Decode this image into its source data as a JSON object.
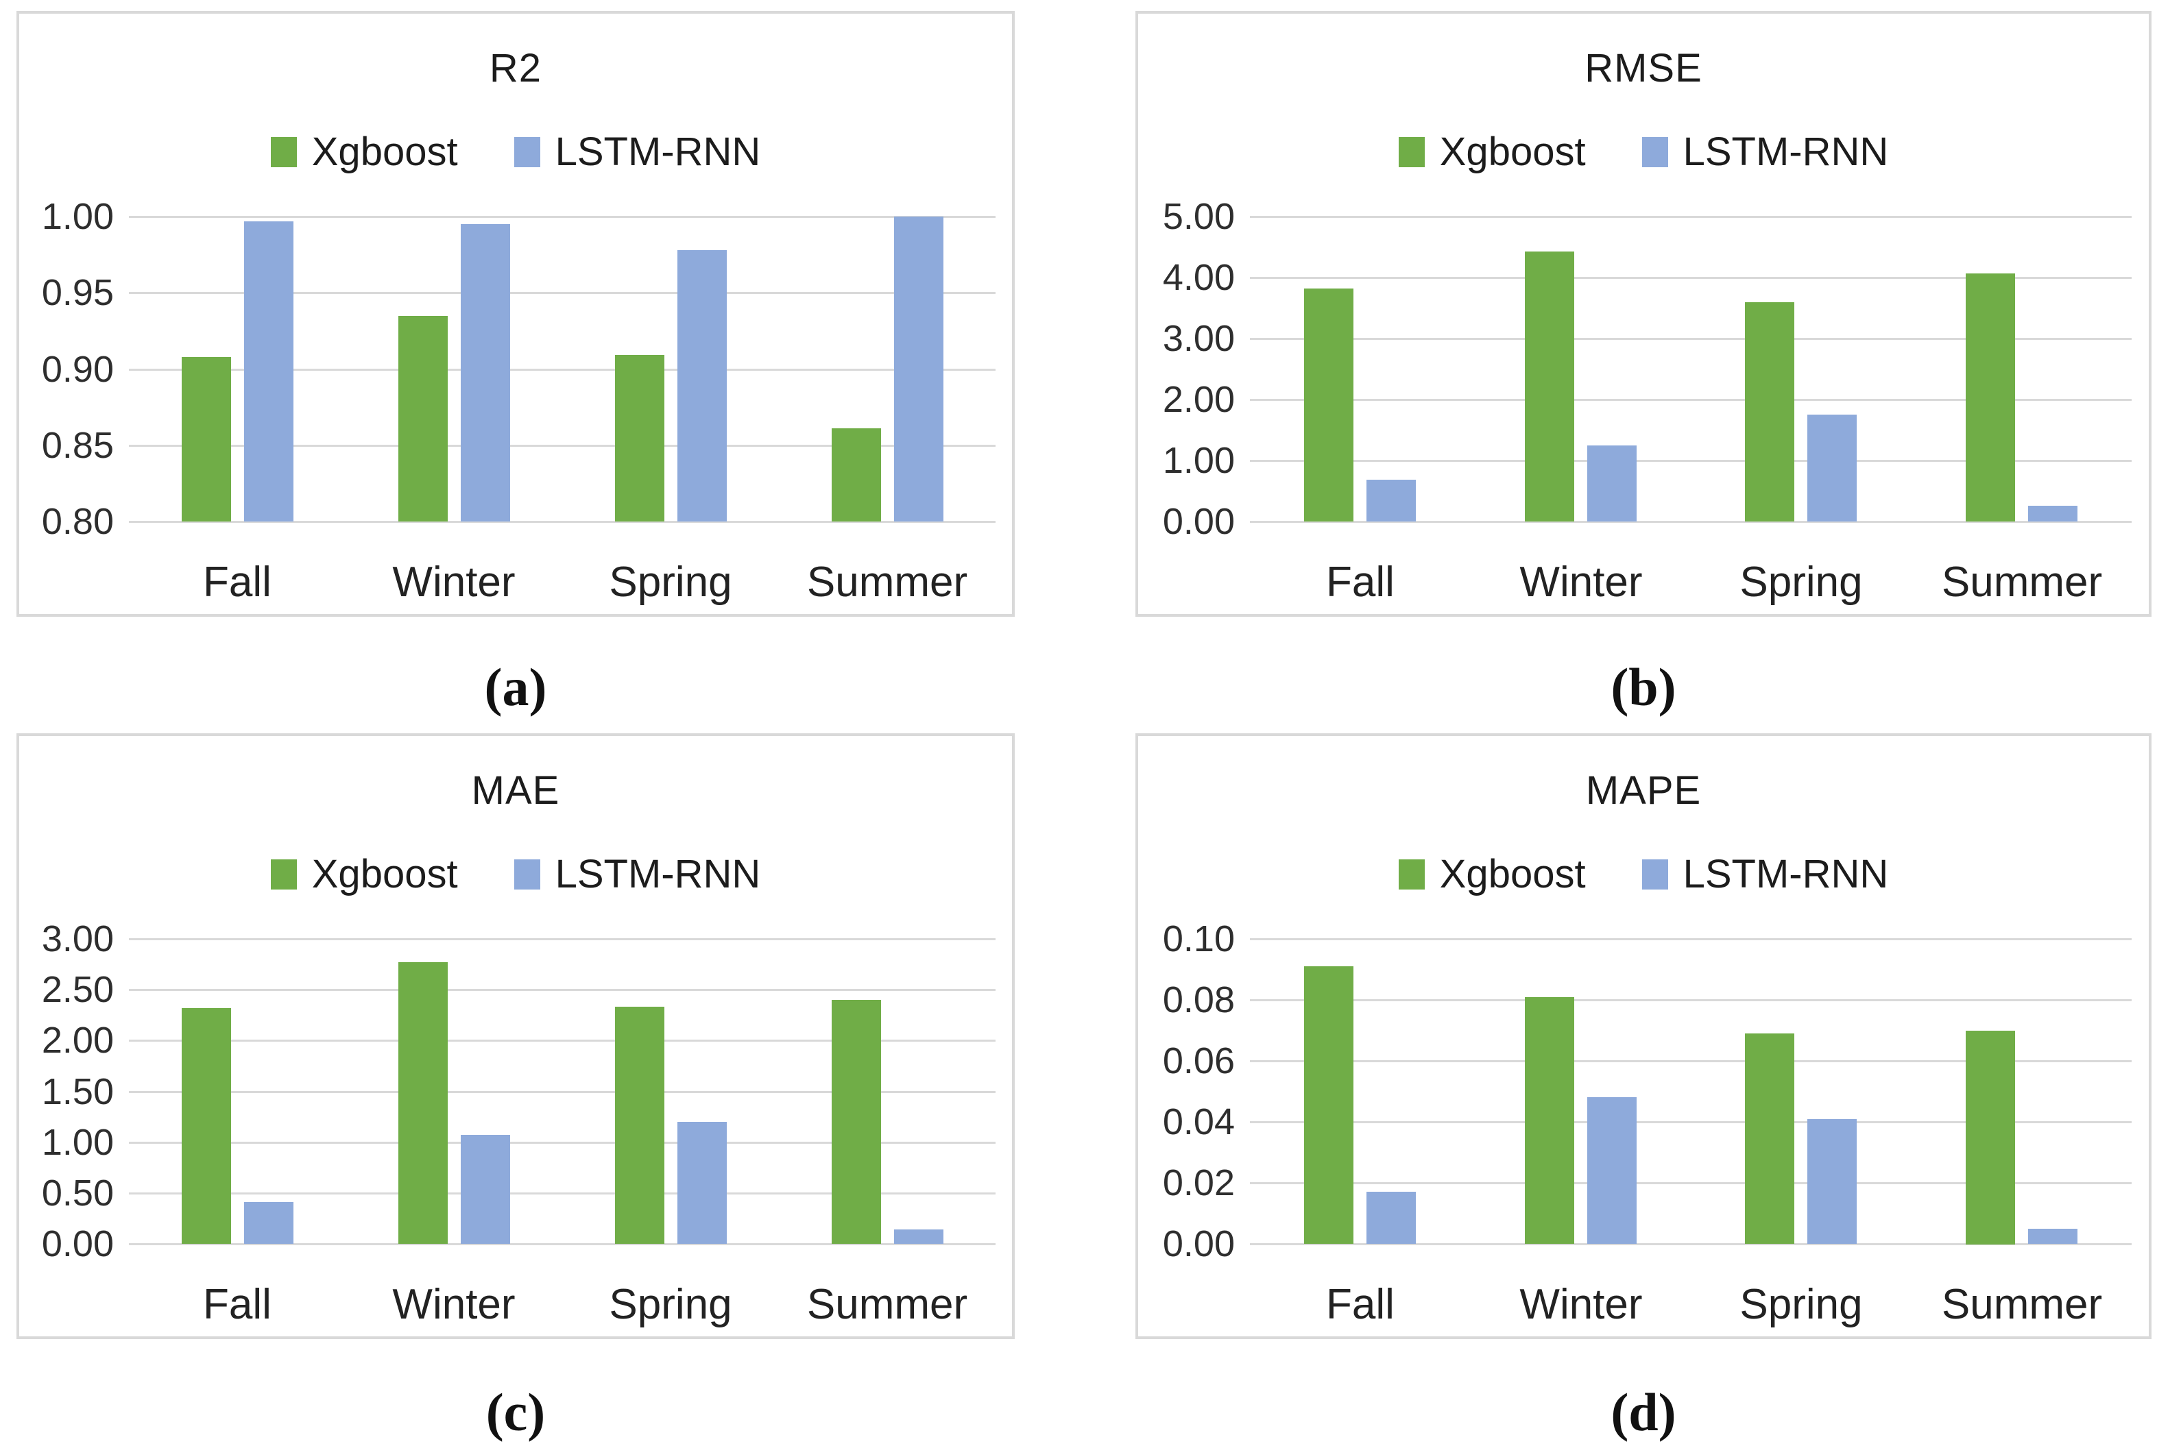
{
  "figure": {
    "legend_labels": [
      "Xgboost",
      "LSTM-RNN"
    ],
    "captions": [
      "(a)",
      "(b)",
      "(c)",
      "(d)"
    ],
    "colors": {
      "xgboost_green": "#70AD47",
      "lstm_blue": "#8EAADB",
      "gridline_gray": "#D9D9D9"
    }
  },
  "chart_data": [
    {
      "type": "bar",
      "title": "R2",
      "categories": [
        "Fall",
        "Winter",
        "Spring",
        "Summer"
      ],
      "series": [
        {
          "name": "Xgboost",
          "color": "#70AD47",
          "values": [
            0.908,
            0.935,
            0.909,
            0.861
          ]
        },
        {
          "name": "LSTM-RNN",
          "color": "#8EAADB",
          "values": [
            0.997,
            0.995,
            0.978,
            1.0
          ]
        }
      ],
      "ylim": [
        0.8,
        1.0
      ],
      "ytick_step": 0.05,
      "grid": true,
      "legend_position": "top-center"
    },
    {
      "type": "bar",
      "title": "RMSE",
      "categories": [
        "Fall",
        "Winter",
        "Spring",
        "Summer"
      ],
      "series": [
        {
          "name": "Xgboost",
          "color": "#70AD47",
          "values": [
            3.82,
            4.43,
            3.6,
            4.07
          ]
        },
        {
          "name": "LSTM-RNN",
          "color": "#8EAADB",
          "values": [
            0.68,
            1.25,
            1.75,
            0.26
          ]
        }
      ],
      "ylim": [
        0.0,
        5.0
      ],
      "ytick_step": 1.0,
      "grid": true,
      "legend_position": "top-center"
    },
    {
      "type": "bar",
      "title": "MAE",
      "categories": [
        "Fall",
        "Winter",
        "Spring",
        "Summer"
      ],
      "series": [
        {
          "name": "Xgboost",
          "color": "#70AD47",
          "values": [
            2.32,
            2.77,
            2.33,
            2.4
          ]
        },
        {
          "name": "LSTM-RNN",
          "color": "#8EAADB",
          "values": [
            0.41,
            1.07,
            1.2,
            0.14
          ]
        }
      ],
      "ylim": [
        0.0,
        3.0
      ],
      "ytick_step": 0.5,
      "grid": true,
      "legend_position": "top-center"
    },
    {
      "type": "bar",
      "title": "MAPE",
      "categories": [
        "Fall",
        "Winter",
        "Spring",
        "Summer"
      ],
      "series": [
        {
          "name": "Xgboost",
          "color": "#70AD47",
          "values": [
            0.091,
            0.081,
            0.069,
            0.07
          ]
        },
        {
          "name": "LSTM-RNN",
          "color": "#8EAADB",
          "values": [
            0.017,
            0.048,
            0.041,
            0.005
          ]
        }
      ],
      "ylim": [
        0.0,
        0.1
      ],
      "ytick_step": 0.02,
      "grid": true,
      "legend_position": "top-center"
    }
  ]
}
